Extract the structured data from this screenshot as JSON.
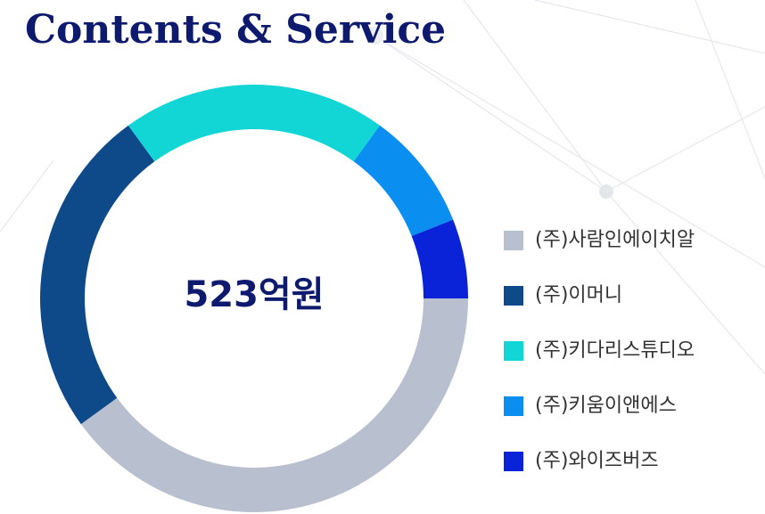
{
  "chart_data": {
    "type": "pie",
    "title": "Contents & Service",
    "center_label": "523억원",
    "categories": [
      "(주)사람인에이치알",
      "(주)이머니",
      "(주)키다리스튜디오",
      "(주)키움이앤에스",
      "(주)와이즈버즈"
    ],
    "values": [
      40,
      25,
      20,
      9,
      6
    ],
    "colors": [
      "#b8c0cf",
      "#0e4a8a",
      "#12d6d6",
      "#0a8ef0",
      "#0a23d8"
    ],
    "legend": "right"
  }
}
